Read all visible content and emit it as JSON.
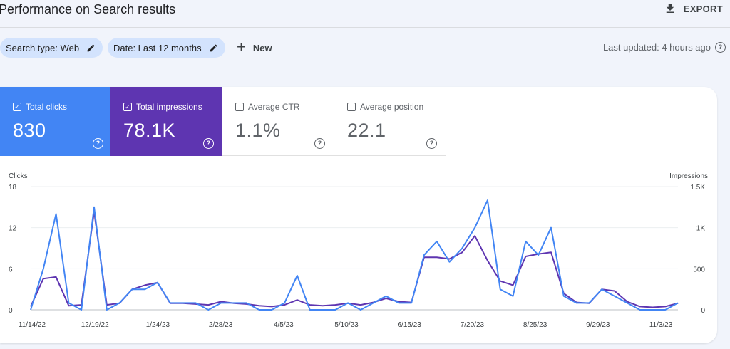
{
  "header": {
    "title": "Performance on Search results",
    "export_label": "EXPORT"
  },
  "filters": {
    "search_type": "Search type: Web",
    "date": "Date: Last 12 months",
    "new_label": "New",
    "last_updated": "Last updated: 4 hours ago"
  },
  "metrics": [
    {
      "label": "Total clicks",
      "value": "830",
      "selected": true,
      "color": "#4285f4"
    },
    {
      "label": "Total impressions",
      "value": "78.1K",
      "selected": true,
      "color": "#5e35b1"
    },
    {
      "label": "Average CTR",
      "value": "1.1%",
      "selected": false
    },
    {
      "label": "Average position",
      "value": "22.1",
      "selected": false
    }
  ],
  "chart_data": {
    "type": "line",
    "ylabel_left": "Clicks",
    "ylabel_right": "Impressions",
    "left_ticks": [
      "18",
      "12",
      "6",
      "0"
    ],
    "right_ticks": [
      "1.5K",
      "1K",
      "500",
      "0"
    ],
    "left_ylim": [
      0,
      18
    ],
    "right_ylim": [
      0,
      1500
    ],
    "grid": true,
    "x_tick_labels": [
      "11/14/22",
      "12/19/22",
      "1/24/23",
      "2/28/23",
      "4/5/23",
      "5/10/23",
      "6/15/23",
      "7/20/23",
      "8/25/23",
      "9/29/23",
      "11/3/23"
    ],
    "x": [
      "11/14/22",
      "11/21/22",
      "11/28/22",
      "12/5/22",
      "12/12/22",
      "12/19/22",
      "12/26/22",
      "1/2/23",
      "1/9/23",
      "1/16/23",
      "1/23/23",
      "1/30/23",
      "2/6/23",
      "2/13/23",
      "2/20/23",
      "2/27/23",
      "3/6/23",
      "3/13/23",
      "3/20/23",
      "3/27/23",
      "4/3/23",
      "4/10/23",
      "4/17/23",
      "4/24/23",
      "5/1/23",
      "5/8/23",
      "5/15/23",
      "5/22/23",
      "5/29/23",
      "6/5/23",
      "6/12/23",
      "6/19/23",
      "6/26/23",
      "7/3/23",
      "7/10/23",
      "7/17/23",
      "7/24/23",
      "7/31/23",
      "8/7/23",
      "8/14/23",
      "8/21/23",
      "8/28/23",
      "9/4/23",
      "9/11/23",
      "9/18/23",
      "9/25/23",
      "10/2/23",
      "10/9/23",
      "10/16/23",
      "10/23/23",
      "10/30/23",
      "11/6/23"
    ],
    "series": [
      {
        "name": "Clicks",
        "axis": "left",
        "color": "#4285f4",
        "values": [
          0,
          6,
          14,
          1,
          0,
          15,
          0,
          1,
          3,
          3,
          4,
          1,
          1,
          1,
          0,
          1,
          1,
          1,
          0,
          0,
          1,
          5,
          0,
          0,
          0,
          1,
          0,
          1,
          2,
          1,
          1,
          8,
          10,
          7,
          9,
          12,
          16,
          3,
          2,
          10,
          8,
          12,
          2,
          1,
          1,
          3,
          2,
          1,
          0,
          0,
          0,
          1
        ]
      },
      {
        "name": "Impressions",
        "axis": "right",
        "color": "#5e35b1",
        "values": [
          40,
          380,
          400,
          50,
          60,
          1200,
          60,
          80,
          250,
          300,
          330,
          80,
          80,
          70,
          60,
          100,
          80,
          70,
          50,
          40,
          60,
          120,
          60,
          50,
          60,
          80,
          60,
          90,
          140,
          100,
          90,
          640,
          640,
          620,
          700,
          900,
          600,
          350,
          300,
          650,
          680,
          700,
          200,
          90,
          80,
          250,
          230,
          100,
          40,
          30,
          40,
          80
        ]
      }
    ]
  }
}
